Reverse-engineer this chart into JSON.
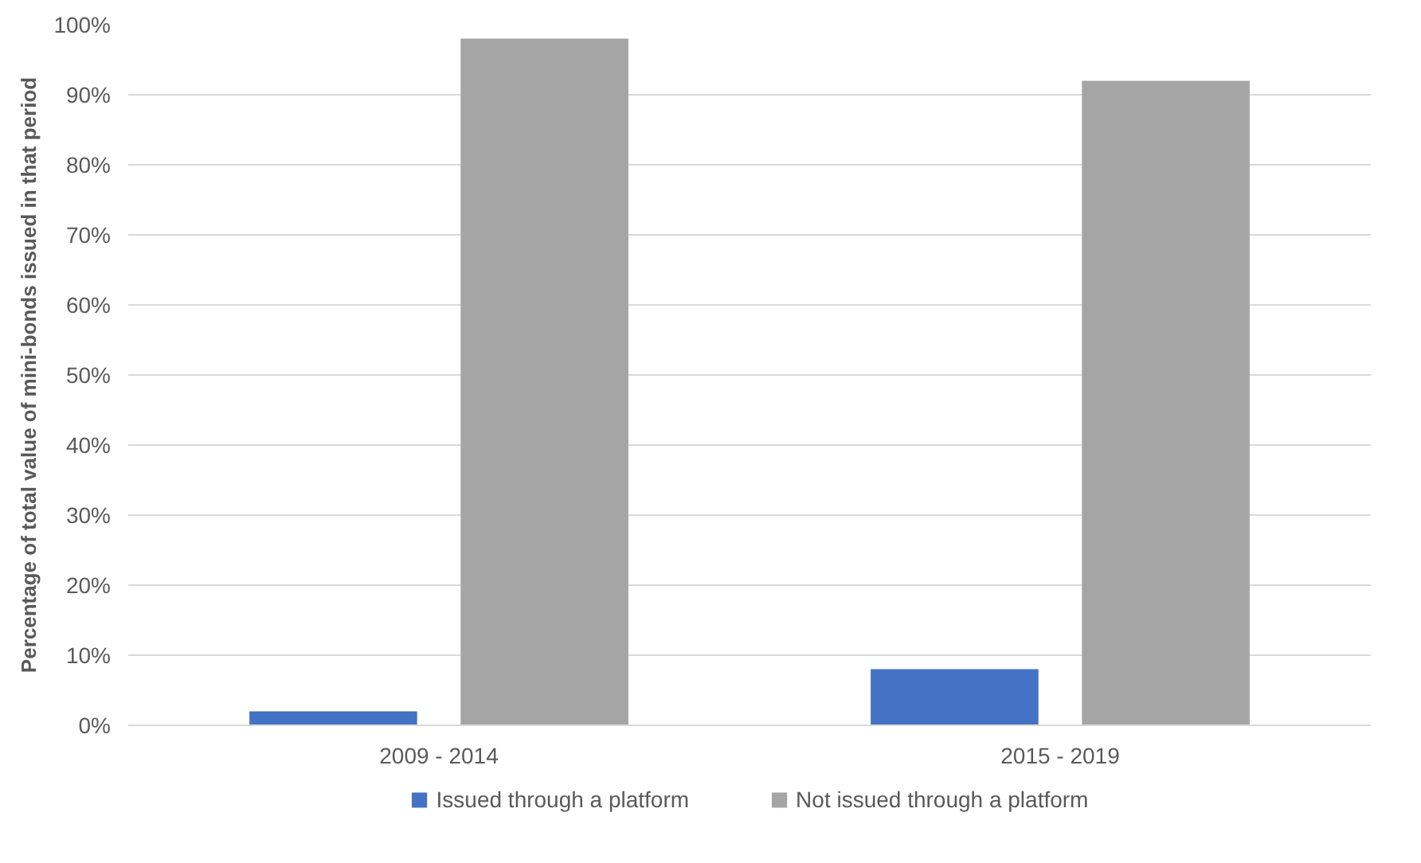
{
  "chart_data": {
    "type": "bar",
    "ylabel": "Percentage of total value of mini-bonds issued in that period",
    "categories": [
      "2009 - 2014",
      "2015 - 2019"
    ],
    "series": [
      {
        "name": "Issued through a platform",
        "color": "#4472c4",
        "values": [
          2,
          8
        ]
      },
      {
        "name": "Not issued through a platform",
        "color": "#a5a5a5",
        "values": [
          98,
          92
        ]
      }
    ],
    "ylim": [
      0,
      100
    ],
    "yticks": [
      {
        "value": 0,
        "label": "0%"
      },
      {
        "value": 10,
        "label": "10%"
      },
      {
        "value": 20,
        "label": "20%"
      },
      {
        "value": 30,
        "label": "30%"
      },
      {
        "value": 40,
        "label": "40%"
      },
      {
        "value": 50,
        "label": "50%"
      },
      {
        "value": 60,
        "label": "60%"
      },
      {
        "value": 70,
        "label": "70%"
      },
      {
        "value": 80,
        "label": "80%"
      },
      {
        "value": 90,
        "label": "90%"
      },
      {
        "value": 100,
        "label": "100%"
      }
    ],
    "grid": "y",
    "legend": "bottom"
  }
}
